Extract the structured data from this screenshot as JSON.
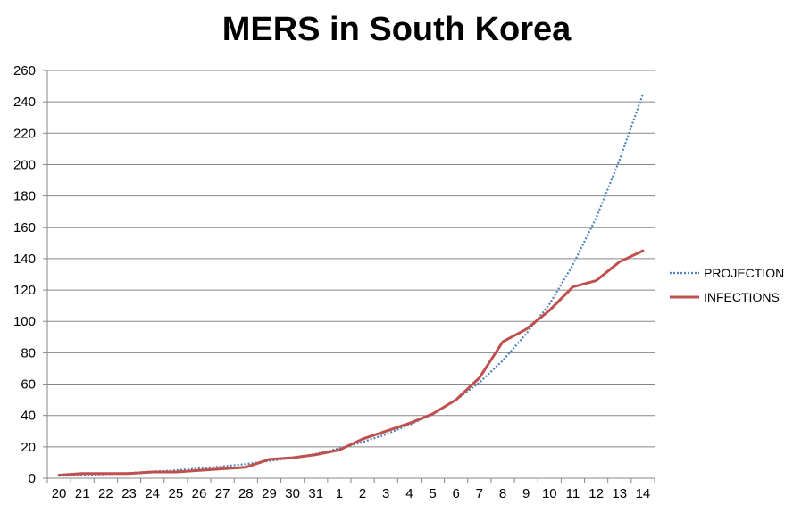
{
  "chart_data": {
    "type": "line",
    "title": "MERS in South Korea",
    "xlabel": "",
    "ylabel": "",
    "categories": [
      "20",
      "21",
      "22",
      "23",
      "24",
      "25",
      "26",
      "27",
      "28",
      "29",
      "30",
      "31",
      "1",
      "2",
      "3",
      "4",
      "5",
      "6",
      "7",
      "8",
      "9",
      "10",
      "11",
      "12",
      "13",
      "14"
    ],
    "ylim": [
      0,
      260
    ],
    "yticks": [
      0,
      20,
      40,
      60,
      80,
      100,
      120,
      140,
      160,
      180,
      200,
      220,
      240,
      260
    ],
    "grid": true,
    "legend": "right",
    "series": [
      {
        "name": "PROJECTION",
        "style": "dotted",
        "color": "#4f81bd",
        "values": [
          1.5,
          2,
          2.6,
          3.3,
          4.2,
          5,
          6.3,
          7.5,
          9,
          11,
          13,
          15.5,
          19,
          23,
          28,
          34,
          41,
          50,
          61,
          75,
          92,
          111,
          136,
          166,
          203,
          245
        ]
      },
      {
        "name": "INFECTIONS",
        "style": "solid",
        "color": "#c0504d",
        "values": [
          2,
          3,
          3,
          3,
          4,
          4,
          5,
          6,
          7,
          12,
          13,
          15,
          18,
          25,
          30,
          35,
          41,
          50,
          64,
          87,
          95,
          107,
          122,
          126,
          138,
          145
        ]
      }
    ]
  }
}
